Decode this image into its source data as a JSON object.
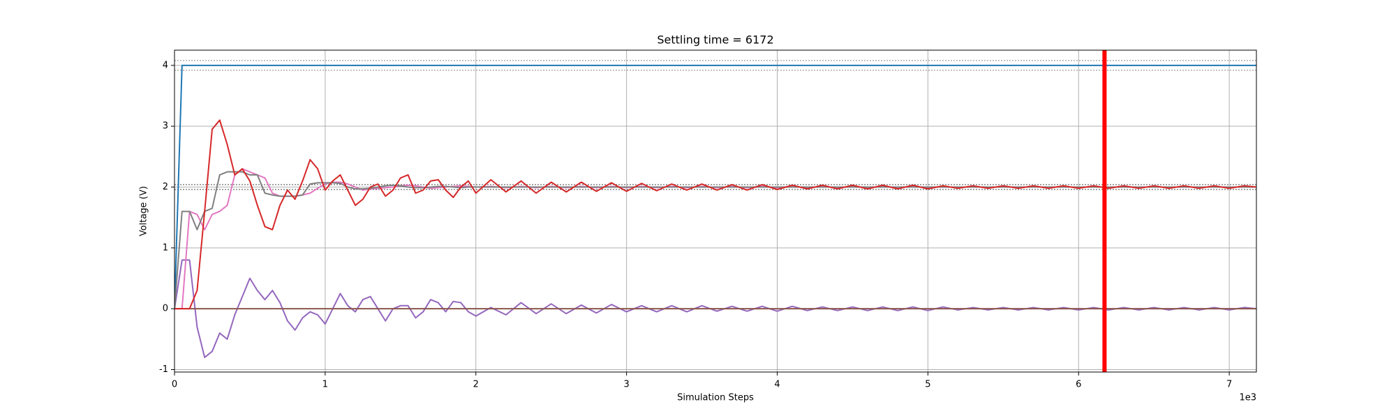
{
  "chart_data": {
    "type": "line",
    "title": "Settling time = 6172",
    "x_label": "Simulation Steps",
    "y_label": "Voltage (V)",
    "x_offset_label": "1e3",
    "xlim": [
      0,
      7180
    ],
    "ylim": [
      -1.04,
      4.25
    ],
    "xticks": [
      0,
      {
        "value": 1000,
        "label": "1"
      },
      {
        "value": 2000,
        "label": "2"
      },
      {
        "value": 3000,
        "label": "3"
      },
      {
        "value": 4000,
        "label": "4"
      },
      {
        "value": 5000,
        "label": "5"
      },
      {
        "value": 6000,
        "label": "6"
      },
      {
        "value": 7000,
        "label": "7"
      }
    ],
    "yticks": [
      -1,
      0,
      1,
      2,
      3,
      4
    ],
    "grid": true,
    "x": [
      0,
      50,
      100,
      150,
      200,
      250,
      300,
      350,
      400,
      450,
      500,
      550,
      600,
      650,
      700,
      750,
      800,
      850,
      900,
      950,
      1000,
      1050,
      1100,
      1150,
      1200,
      1250,
      1300,
      1350,
      1400,
      1450,
      1500,
      1550,
      1600,
      1650,
      1700,
      1750,
      1800,
      1850,
      1900,
      1950,
      2000,
      2100,
      2200,
      2300,
      2400,
      2500,
      2600,
      2700,
      2800,
      2900,
      3000,
      3100,
      3200,
      3300,
      3400,
      3500,
      3600,
      3700,
      3800,
      3900,
      4000,
      4100,
      4200,
      4300,
      4400,
      4500,
      4600,
      4700,
      4800,
      4900,
      5000,
      5100,
      5200,
      5300,
      5400,
      5500,
      5600,
      5700,
      5800,
      5900,
      6000,
      6100,
      6200,
      6300,
      6400,
      6500,
      6600,
      6700,
      6800,
      6900,
      7000,
      7100,
      7180
    ],
    "series": [
      {
        "color": "#1f77b4",
        "values": [
          0,
          4,
          4,
          4,
          4,
          4,
          4,
          4,
          4,
          4,
          4,
          4,
          4,
          4,
          4,
          4,
          4,
          4,
          4,
          4,
          4,
          4,
          4,
          4,
          4,
          4,
          4,
          4,
          4,
          4,
          4,
          4,
          4,
          4,
          4,
          4,
          4,
          4,
          4,
          4,
          4,
          4,
          4,
          4,
          4,
          4,
          4,
          4,
          4,
          4,
          4,
          4,
          4,
          4,
          4,
          4,
          4,
          4,
          4,
          4,
          4,
          4,
          4,
          4,
          4,
          4,
          4,
          4,
          4,
          4,
          4,
          4,
          4,
          4,
          4,
          4,
          4,
          4,
          4,
          4,
          4,
          4,
          4,
          4,
          4,
          4,
          4,
          4,
          4,
          4,
          4,
          4,
          4
        ]
      },
      {
        "color": "#9467bd",
        "values": [
          0,
          0.8,
          0.8,
          -0.3,
          -0.8,
          -0.7,
          -0.4,
          -0.5,
          -0.1,
          0.2,
          0.5,
          0.3,
          0.15,
          0.3,
          0.1,
          -0.2,
          -0.35,
          -0.15,
          -0.05,
          -0.1,
          -0.25,
          0.0,
          0.25,
          0.05,
          -0.05,
          0.15,
          0.2,
          0.0,
          -0.2,
          0.0,
          0.05,
          0.05,
          -0.15,
          -0.05,
          0.15,
          0.1,
          -0.05,
          0.12,
          0.1,
          -0.05,
          -0.12,
          0.02,
          -0.1,
          0.1,
          -0.08,
          0.08,
          -0.08,
          0.06,
          -0.07,
          0.07,
          -0.05,
          0.05,
          -0.05,
          0.05,
          -0.05,
          0.05,
          -0.04,
          0.04,
          -0.04,
          0.04,
          -0.04,
          0.04,
          -0.03,
          0.03,
          -0.03,
          0.03,
          -0.03,
          0.03,
          -0.03,
          0.03,
          -0.03,
          0.03,
          -0.02,
          0.02,
          -0.02,
          0.02,
          -0.02,
          0.02,
          -0.02,
          0.02,
          -0.02,
          0.02,
          -0.02,
          0.02,
          -0.02,
          0.02,
          -0.02,
          0.02,
          -0.02,
          0.02,
          -0.02,
          0.02,
          0.0
        ]
      },
      {
        "color": "#e377c2",
        "values": [
          0,
          0,
          1.6,
          1.55,
          1.3,
          1.55,
          1.6,
          1.7,
          2.2,
          2.3,
          2.25,
          2.2,
          2.15,
          1.9,
          1.85,
          1.85,
          1.85,
          1.87,
          1.9,
          1.98,
          2.05,
          2.08,
          2.08,
          2.05,
          2.0,
          1.95,
          1.97,
          1.98,
          1.99,
          2.0,
          2.02,
          2.03,
          2.02,
          2.0,
          1.98,
          1.99,
          2.0,
          2.01,
          2.02,
          2.01,
          2.0,
          2.01,
          1.99,
          2.01,
          1.99,
          2.01,
          1.99,
          2.01,
          1.99,
          2.01,
          1.99,
          2.01,
          1.99,
          2.01,
          1.99,
          2.01,
          1.99,
          2.01,
          1.99,
          2.01,
          1.99,
          2.01,
          1.99,
          2.01,
          1.99,
          2.01,
          1.99,
          2.01,
          1.99,
          2.01,
          1.99,
          2.01,
          1.99,
          2.01,
          1.99,
          2.01,
          1.99,
          2.01,
          1.99,
          2.01,
          1.99,
          2.01,
          1.99,
          2.01,
          1.99,
          2.01,
          1.99,
          2.01,
          1.99,
          2.01,
          1.99,
          2.01,
          2.0
        ]
      },
      {
        "color": "#7f7f7f",
        "values": [
          0,
          1.6,
          1.6,
          1.3,
          1.6,
          1.65,
          2.2,
          2.25,
          2.25,
          2.25,
          2.2,
          2.2,
          1.9,
          1.87,
          1.85,
          1.85,
          1.85,
          1.87,
          2.05,
          2.07,
          2.07,
          2.07,
          2.06,
          2.0,
          1.97,
          1.97,
          1.98,
          2.0,
          2.02,
          2.03,
          2.02,
          2.0,
          1.99,
          1.99,
          2.0,
          2.01,
          2.01,
          2.0,
          1.99,
          2.0,
          2.0,
          2,
          2,
          2,
          2,
          2,
          2,
          2,
          2,
          2,
          2,
          2,
          2,
          2,
          2,
          2,
          2,
          2,
          2,
          2,
          2,
          2,
          2,
          2,
          2,
          2,
          2,
          2,
          2,
          2,
          2,
          2,
          2,
          2,
          2,
          2,
          2,
          2,
          2,
          2,
          2,
          2,
          2,
          2,
          2,
          2,
          2,
          2,
          2,
          2,
          2,
          2,
          2
        ]
      },
      {
        "color": "#8c564b",
        "values": [
          0,
          0,
          0,
          0,
          0,
          0,
          0,
          0,
          0,
          0,
          0,
          0,
          0,
          0,
          0,
          0,
          0,
          0,
          0,
          0,
          0,
          0,
          0,
          0,
          0,
          0,
          0,
          0,
          0,
          0,
          0,
          0,
          0,
          0,
          0,
          0,
          0,
          0,
          0,
          0,
          0,
          0,
          0,
          0,
          0,
          0,
          0,
          0,
          0,
          0,
          0,
          0,
          0,
          0,
          0,
          0,
          0,
          0,
          0,
          0,
          0,
          0,
          0,
          0,
          0,
          0,
          0,
          0,
          0,
          0,
          0,
          0,
          0,
          0,
          0,
          0,
          0,
          0,
          0,
          0,
          0,
          0,
          0,
          0,
          0,
          0,
          0,
          0,
          0,
          0,
          0,
          0,
          0
        ]
      },
      {
        "color": "#d62728",
        "values": [
          0,
          0,
          0,
          0.3,
          1.6,
          2.95,
          3.1,
          2.7,
          2.2,
          2.3,
          2.1,
          1.7,
          1.35,
          1.3,
          1.7,
          1.95,
          1.8,
          2.1,
          2.45,
          2.3,
          1.95,
          2.1,
          2.2,
          1.95,
          1.7,
          1.8,
          2.0,
          2.05,
          1.85,
          1.95,
          2.15,
          2.2,
          1.9,
          1.95,
          2.1,
          2.12,
          1.95,
          1.83,
          2.0,
          2.1,
          1.9,
          2.12,
          1.92,
          2.1,
          1.9,
          2.08,
          1.92,
          2.08,
          1.93,
          2.07,
          1.93,
          2.06,
          1.94,
          2.05,
          1.95,
          2.05,
          1.95,
          2.04,
          1.95,
          2.04,
          1.96,
          2.03,
          1.97,
          2.03,
          1.97,
          2.03,
          1.97,
          2.03,
          1.97,
          2.03,
          1.97,
          2.02,
          1.98,
          2.02,
          1.98,
          2.02,
          1.98,
          2.02,
          1.98,
          2.02,
          1.98,
          2.02,
          1.98,
          2.02,
          1.98,
          2.02,
          1.98,
          2.02,
          1.98,
          2.02,
          1.98,
          2.02,
          2.0
        ]
      }
    ],
    "hlines": [
      {
        "value": 4.08,
        "color": "#888888"
      },
      {
        "value": 3.92,
        "color": "#888888"
      },
      {
        "value": 2.04,
        "color": "#444444"
      },
      {
        "value": 1.96,
        "color": "#444444"
      }
    ],
    "vline": {
      "value": 6172,
      "color": "#ff0000"
    }
  }
}
